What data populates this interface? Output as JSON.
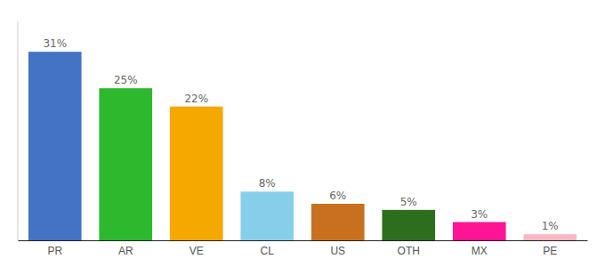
{
  "chart_data": {
    "type": "bar",
    "categories": [
      "PR",
      "AR",
      "VE",
      "CL",
      "US",
      "OTH",
      "MX",
      "PE"
    ],
    "values": [
      31,
      25,
      22,
      8,
      6,
      5,
      3,
      1
    ],
    "value_labels": [
      "31%",
      "25%",
      "22%",
      "8%",
      "6%",
      "5%",
      "3%",
      "1%"
    ],
    "colors": [
      "#4472c4",
      "#2db82d",
      "#f5a800",
      "#87ceeb",
      "#c87020",
      "#2d6e1e",
      "#ff1493",
      "#ffb6c1"
    ],
    "ylim": [
      0,
      36
    ],
    "grid": false,
    "data_labels": true,
    "tick_labels": "x"
  }
}
